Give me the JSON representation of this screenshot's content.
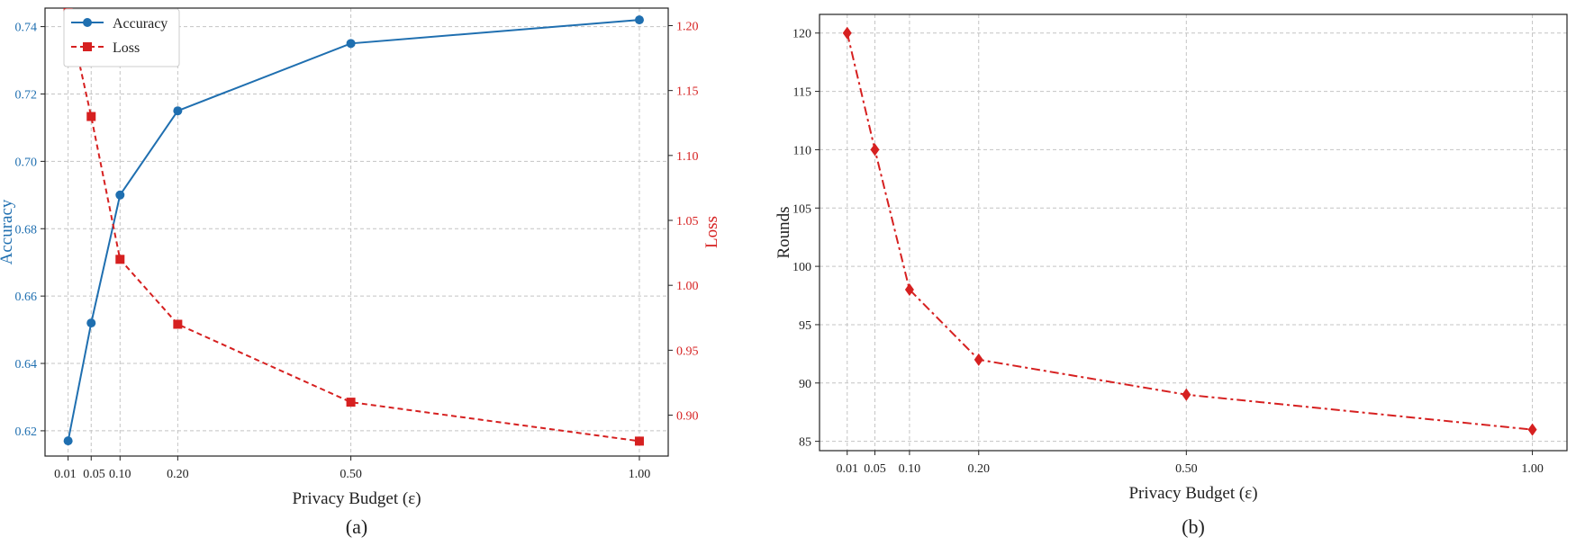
{
  "chart_data": [
    {
      "type": "line",
      "panel_label": "(a)",
      "xlabel": "Privacy Budget (ε)",
      "x": [
        0.01,
        0.05,
        0.1,
        0.2,
        0.5,
        1.0
      ],
      "x_tick_labels": [
        "0.01",
        "0.05",
        "0.10",
        "0.20",
        "0.50",
        "1.00"
      ],
      "xlim": [
        -0.03,
        1.05
      ],
      "ylabel": "Accuracy",
      "ylim": [
        0.6125,
        0.7455
      ],
      "y_ticks": [
        "0.62",
        "0.64",
        "0.66",
        "0.68",
        "0.70",
        "0.72",
        "0.74"
      ],
      "y2label": "Loss",
      "y2lim": [
        0.8685,
        1.2135
      ],
      "y2_ticks": [
        "0.90",
        "0.95",
        "1.00",
        "1.05",
        "1.10",
        "1.15",
        "1.20"
      ],
      "grid": true,
      "legend_position": "top-left",
      "series": [
        {
          "name": "Accuracy",
          "axis": "left",
          "color": "#1f6fb0",
          "marker": "circle",
          "line": "solid",
          "values": [
            0.617,
            0.652,
            0.69,
            0.715,
            0.735,
            0.742
          ]
        },
        {
          "name": "Loss",
          "axis": "right",
          "color": "#d62020",
          "marker": "square",
          "line": "dashed",
          "values": [
            1.21,
            1.13,
            1.02,
            0.97,
            0.91,
            0.88
          ]
        }
      ]
    },
    {
      "type": "line",
      "panel_label": "(b)",
      "xlabel": "Privacy Budget (ε)",
      "x": [
        0.01,
        0.05,
        0.1,
        0.2,
        0.5,
        1.0
      ],
      "x_tick_labels": [
        "0.01",
        "0.05",
        "0.10",
        "0.20",
        "0.50",
        "1.00"
      ],
      "xlim": [
        -0.03,
        1.05
      ],
      "ylabel": "Rounds",
      "ylim": [
        84.2,
        121.6
      ],
      "y_ticks": [
        "85",
        "90",
        "95",
        "100",
        "105",
        "110",
        "115",
        "120"
      ],
      "grid": true,
      "series": [
        {
          "color": "#d62020",
          "marker": "diamond",
          "line": "dashdot",
          "values": [
            120,
            110,
            98,
            92,
            89,
            86
          ]
        }
      ]
    }
  ]
}
